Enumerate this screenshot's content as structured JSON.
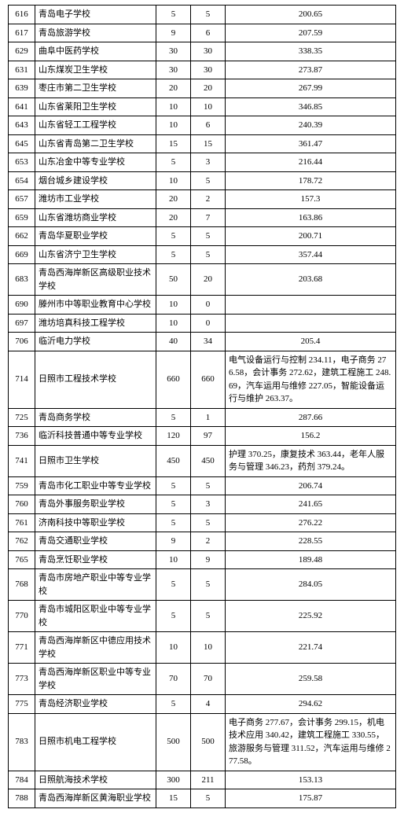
{
  "table": {
    "columns": [
      {
        "key": "code",
        "class": "c0",
        "align": "center"
      },
      {
        "key": "name",
        "class": "c1",
        "align": "left"
      },
      {
        "key": "plan",
        "class": "c2",
        "align": "center"
      },
      {
        "key": "enroll",
        "class": "c3",
        "align": "center"
      },
      {
        "key": "score",
        "class": "c4",
        "align": "center"
      }
    ],
    "rows": [
      {
        "code": "616",
        "name": "青岛电子学校",
        "plan": "5",
        "enroll": "5",
        "score": "200.65"
      },
      {
        "code": "617",
        "name": "青岛旅游学校",
        "plan": "9",
        "enroll": "6",
        "score": "207.59"
      },
      {
        "code": "629",
        "name": "曲阜中医药学校",
        "plan": "30",
        "enroll": "30",
        "score": "338.35"
      },
      {
        "code": "631",
        "name": "山东煤炭卫生学校",
        "plan": "30",
        "enroll": "30",
        "score": "273.87"
      },
      {
        "code": "639",
        "name": "枣庄市第二卫生学校",
        "plan": "20",
        "enroll": "20",
        "score": "267.99"
      },
      {
        "code": "641",
        "name": "山东省莱阳卫生学校",
        "plan": "10",
        "enroll": "10",
        "score": "346.85"
      },
      {
        "code": "643",
        "name": "山东省轻工工程学校",
        "plan": "10",
        "enroll": "6",
        "score": "240.39"
      },
      {
        "code": "645",
        "name": "山东省青岛第二卫生学校",
        "plan": "15",
        "enroll": "15",
        "score": "361.47"
      },
      {
        "code": "653",
        "name": "山东冶金中等专业学校",
        "plan": "5",
        "enroll": "3",
        "score": "216.44"
      },
      {
        "code": "654",
        "name": "烟台城乡建设学校",
        "plan": "10",
        "enroll": "5",
        "score": "178.72"
      },
      {
        "code": "657",
        "name": "潍坊市工业学校",
        "plan": "20",
        "enroll": "2",
        "score": "157.3"
      },
      {
        "code": "659",
        "name": "山东省潍坊商业学校",
        "plan": "20",
        "enroll": "7",
        "score": "163.86"
      },
      {
        "code": "662",
        "name": "青岛华夏职业学校",
        "plan": "5",
        "enroll": "5",
        "score": "200.71"
      },
      {
        "code": "669",
        "name": "山东省济宁卫生学校",
        "plan": "5",
        "enroll": "5",
        "score": "357.44"
      },
      {
        "code": "683",
        "name": "青岛西海岸新区高级职业技术学校",
        "plan": "50",
        "enroll": "20",
        "score": "203.68"
      },
      {
        "code": "690",
        "name": "滕州市中等职业教育中心学校",
        "plan": "10",
        "enroll": "0",
        "score": ""
      },
      {
        "code": "697",
        "name": "潍坊培真科技工程学校",
        "plan": "10",
        "enroll": "0",
        "score": ""
      },
      {
        "code": "706",
        "name": "临沂电力学校",
        "plan": "40",
        "enroll": "34",
        "score": "205.4"
      },
      {
        "code": "714",
        "name": "日照市工程技术学校",
        "plan": "660",
        "enroll": "660",
        "score": "电气设备运行与控制 234.11，电子商务 276.58，会计事务 272.62，建筑工程施工 248.69，汽车运用与维修 227.05，智能设备运行与维护 263.37。",
        "long": true
      },
      {
        "code": "725",
        "name": "青岛商务学校",
        "plan": "5",
        "enroll": "1",
        "score": "287.66"
      },
      {
        "code": "736",
        "name": "临沂科技普通中等专业学校",
        "plan": "120",
        "enroll": "97",
        "score": "156.2"
      },
      {
        "code": "741",
        "name": "日照市卫生学校",
        "plan": "450",
        "enroll": "450",
        "score": "护理 370.25，康复技术 363.44，老年人服务与管理 346.23，药剂 379.24。",
        "long": true
      },
      {
        "code": "759",
        "name": "青岛市化工职业中等专业学校",
        "plan": "5",
        "enroll": "5",
        "score": "206.74"
      },
      {
        "code": "760",
        "name": "青岛外事服务职业学校",
        "plan": "5",
        "enroll": "3",
        "score": "241.65"
      },
      {
        "code": "761",
        "name": "济南科技中等职业学校",
        "plan": "5",
        "enroll": "5",
        "score": "276.22"
      },
      {
        "code": "762",
        "name": "青岛交通职业学校",
        "plan": "9",
        "enroll": "2",
        "score": "228.55"
      },
      {
        "code": "765",
        "name": "青岛烹饪职业学校",
        "plan": "10",
        "enroll": "9",
        "score": "189.48"
      },
      {
        "code": "768",
        "name": "青岛市房地产职业中等专业学校",
        "plan": "5",
        "enroll": "5",
        "score": "284.05"
      },
      {
        "code": "770",
        "name": "青岛市城阳区职业中等专业学校",
        "plan": "5",
        "enroll": "5",
        "score": "225.92"
      },
      {
        "code": "771",
        "name": "青岛西海岸新区中德应用技术学校",
        "plan": "10",
        "enroll": "10",
        "score": "221.74"
      },
      {
        "code": "773",
        "name": "青岛西海岸新区职业中等专业学校",
        "plan": "70",
        "enroll": "70",
        "score": "259.58"
      },
      {
        "code": "775",
        "name": "青岛经济职业学校",
        "plan": "5",
        "enroll": "4",
        "score": "294.62"
      },
      {
        "code": "783",
        "name": "日照市机电工程学校",
        "plan": "500",
        "enroll": "500",
        "score": "电子商务 277.67，会计事务 299.15，机电技术应用 340.42，建筑工程施工 330.55，旅游服务与管理 311.52，汽车运用与维修 277.58。",
        "long": true
      },
      {
        "code": "784",
        "name": "日照航海技术学校",
        "plan": "300",
        "enroll": "211",
        "score": "153.13"
      },
      {
        "code": "788",
        "name": "青岛西海岸新区黄海职业学校",
        "plan": "15",
        "enroll": "5",
        "score": "175.87"
      }
    ]
  }
}
